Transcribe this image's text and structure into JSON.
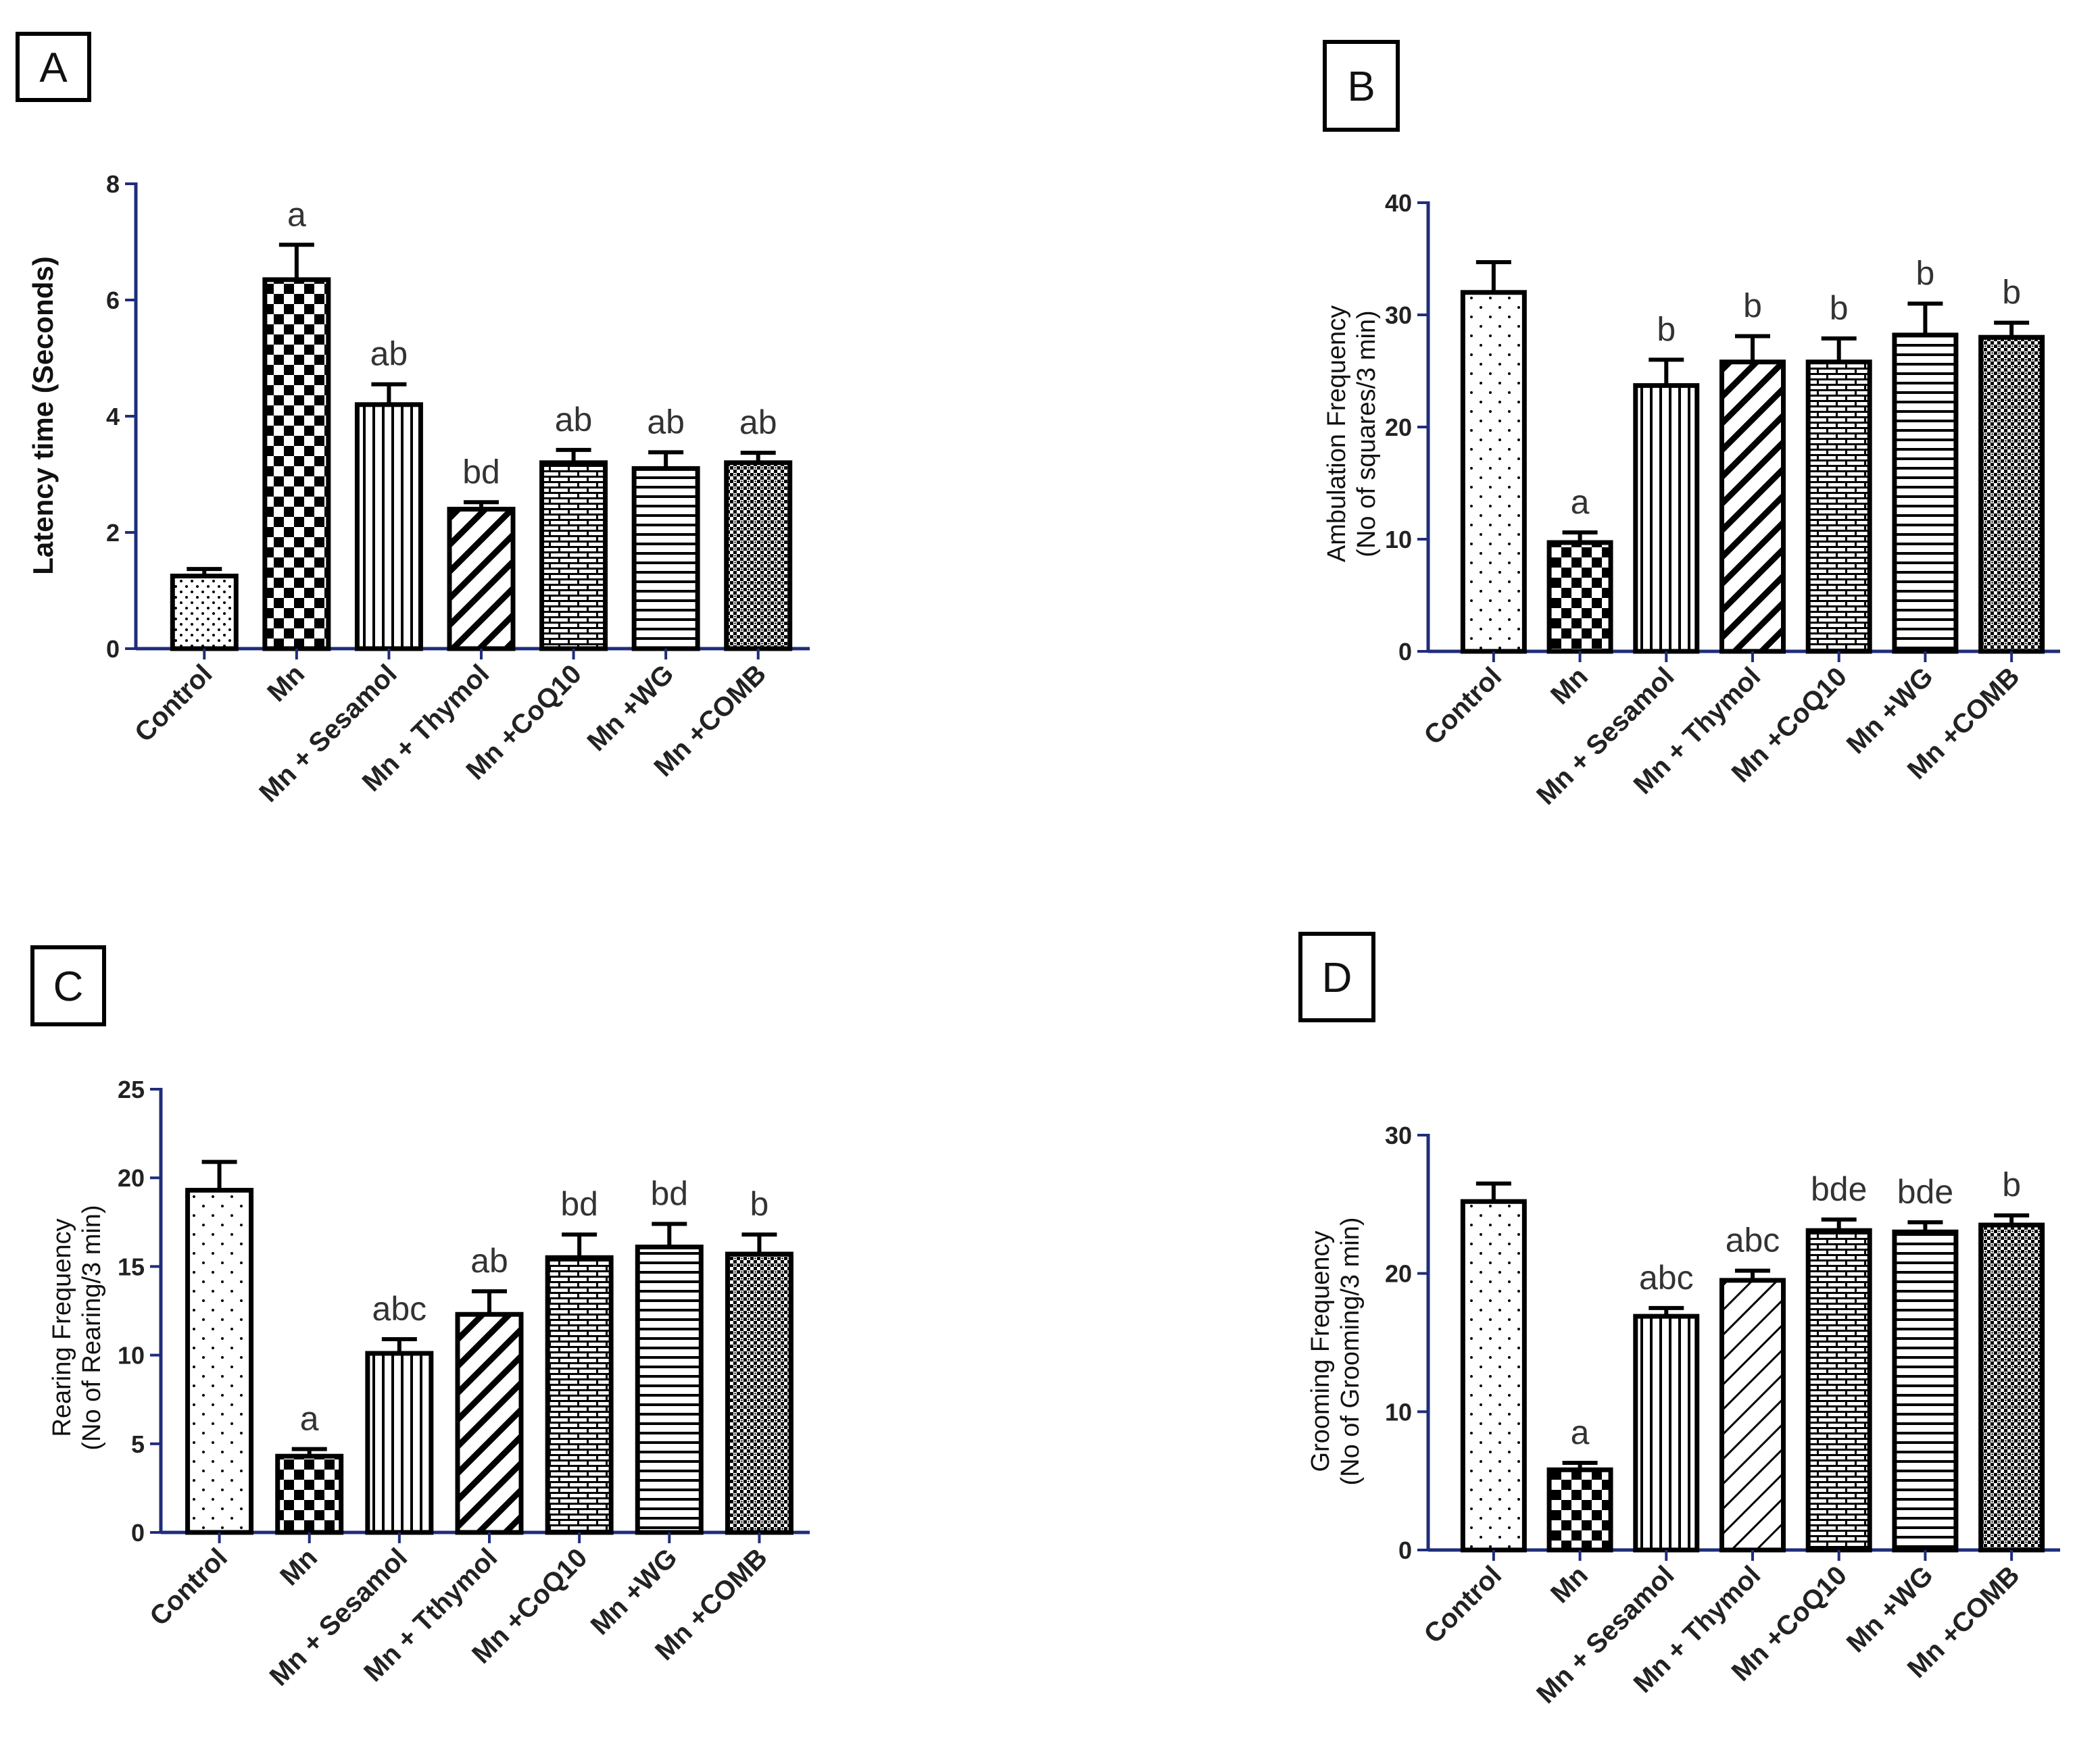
{
  "chart_data": [
    {
      "panel": "A",
      "type": "bar",
      "ylabel": "Latency time (Seconds)",
      "ylim": [
        0,
        8
      ],
      "yticks": [
        0,
        2,
        4,
        6,
        8
      ],
      "categories": [
        "Control",
        "Mn",
        "Mn + Sesamol",
        "Mn + Thymol",
        "Mn +CoQ10",
        "Mn +WG",
        "Mn +COMB"
      ],
      "values": [
        1.25,
        6.35,
        4.2,
        2.4,
        3.2,
        3.1,
        3.2
      ],
      "errors": [
        0.12,
        0.6,
        0.35,
        0.12,
        0.22,
        0.28,
        0.17
      ],
      "annotations": [
        "",
        "a",
        "ab",
        "bd",
        "ab",
        "ab",
        "ab"
      ]
    },
    {
      "panel": "B",
      "type": "bar",
      "ylabel": [
        "Ambulation Frequency",
        "(No of squares/3 min)"
      ],
      "ylim": [
        0,
        40
      ],
      "yticks": [
        0,
        10,
        20,
        30,
        40
      ],
      "categories": [
        "Control",
        "Mn",
        "Mn + Sesamol",
        "Mn + Thymol",
        "Mn +CoQ10",
        "Mn +WG",
        "Mn +COMB"
      ],
      "values": [
        32,
        9.7,
        23.7,
        25.8,
        25.8,
        28.2,
        28
      ],
      "errors": [
        2.7,
        0.9,
        2.3,
        2.3,
        2.1,
        2.8,
        1.3
      ],
      "annotations": [
        "",
        "a",
        "b",
        "b",
        "b",
        "b",
        "b"
      ]
    },
    {
      "panel": "C",
      "type": "bar",
      "ylabel": [
        "Rearing Frequency",
        "(No of Rearing/3 min)"
      ],
      "ylim": [
        0,
        25
      ],
      "yticks": [
        0,
        5,
        10,
        15,
        20,
        25
      ],
      "categories": [
        "Control",
        "Mn",
        "Mn + Sesamol",
        "Mn + Tthymol",
        "Mn +CoQ10",
        "Mn +WG",
        "Mn +COMB"
      ],
      "values": [
        19.3,
        4.3,
        10.1,
        12.3,
        15.5,
        16.1,
        15.7
      ],
      "errors": [
        1.6,
        0.4,
        0.8,
        1.3,
        1.3,
        1.3,
        1.1
      ],
      "annotations": [
        "",
        "a",
        "abc",
        "ab",
        "bd",
        "bd",
        "b"
      ]
    },
    {
      "panel": "D",
      "type": "bar",
      "ylabel": [
        "Grooming Frequency",
        "(No of Grooming/3 min)"
      ],
      "ylim": [
        0,
        30
      ],
      "yticks": [
        0,
        10,
        20,
        30
      ],
      "categories": [
        "Control",
        "Mn",
        "Mn + Sesamol",
        "Mn + Thymol",
        "Mn +CoQ10",
        "Mn +WG",
        "Mn +COMB"
      ],
      "values": [
        25.2,
        5.8,
        16.9,
        19.5,
        23.1,
        23,
        23.5
      ],
      "errors": [
        1.3,
        0.5,
        0.6,
        0.7,
        0.8,
        0.7,
        0.7
      ],
      "annotations": [
        "",
        "a",
        "abc",
        "abc",
        "bde",
        "bde",
        "b"
      ]
    }
  ]
}
